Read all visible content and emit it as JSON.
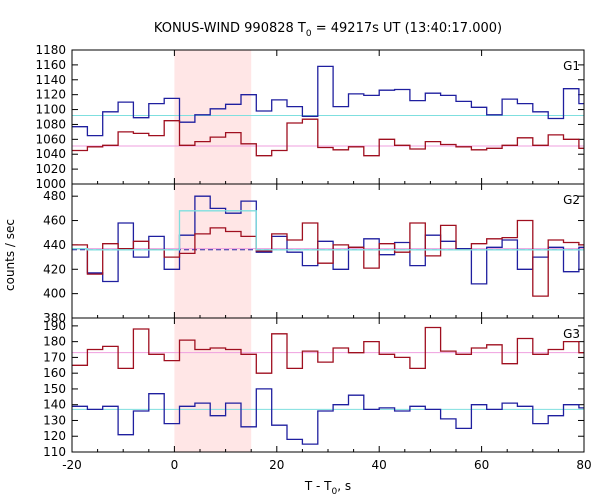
{
  "chart_data": {
    "type": "line",
    "title_main": "KONUS-WIND 990828 T",
    "title_sub": "0",
    "title_rest": " = 49217s UT (13:40:17.000)",
    "xlabel_main": "T - T",
    "xlabel_sub": "0",
    "xlabel_rest": ", s",
    "ylabel": "counts / sec",
    "xlim": [
      -20,
      80
    ],
    "xticks": [
      -20,
      0,
      20,
      40,
      60,
      80
    ],
    "highlight_interval": [
      0,
      15
    ],
    "colors": {
      "blue": "#1f1f9f",
      "red": "#9f0f1f",
      "cyan": "#7fdfdf",
      "pink": "#ef9fdf",
      "highlight": "#ffe6e6"
    },
    "panels": [
      {
        "name": "G1",
        "ylim": [
          1000,
          1180
        ],
        "yticks": [
          1000,
          1020,
          1040,
          1060,
          1080,
          1100,
          1120,
          1140,
          1160,
          1180
        ],
        "series": [
          {
            "color": "blue",
            "x": [
              -20,
              -17,
              -14,
              -11,
              -8,
              -5,
              -2,
              1,
              4,
              7,
              10,
              13,
              16,
              19,
              22,
              25,
              28,
              31,
              34,
              37,
              40,
              43,
              46,
              49,
              52,
              55,
              58,
              61,
              64,
              67,
              70,
              73,
              76,
              79
            ],
            "y": [
              1077,
              1065,
              1097,
              1110,
              1089,
              1108,
              1115,
              1083,
              1093,
              1101,
              1107,
              1120,
              1098,
              1113,
              1104,
              1091,
              1158,
              1104,
              1121,
              1119,
              1126,
              1127,
              1112,
              1122,
              1119,
              1111,
              1103,
              1093,
              1114,
              1108,
              1097,
              1088,
              1128,
              1108
            ]
          },
          {
            "color": "red",
            "x": [
              -20,
              -17,
              -14,
              -11,
              -8,
              -5,
              -2,
              1,
              4,
              7,
              10,
              13,
              16,
              19,
              22,
              25,
              28,
              31,
              34,
              37,
              40,
              43,
              46,
              49,
              52,
              55,
              58,
              61,
              64,
              67,
              70,
              73,
              76,
              79
            ],
            "y": [
              1045,
              1050,
              1052,
              1070,
              1068,
              1065,
              1085,
              1052,
              1057,
              1063,
              1069,
              1054,
              1038,
              1045,
              1082,
              1087,
              1049,
              1046,
              1050,
              1038,
              1060,
              1052,
              1047,
              1057,
              1053,
              1050,
              1046,
              1048,
              1052,
              1062,
              1052,
              1066,
              1060,
              1048
            ]
          }
        ],
        "baselines": [
          {
            "color": "cyan",
            "y": 1092,
            "dashed": false
          },
          {
            "color": "pink",
            "y": 1051,
            "dashed": false
          }
        ]
      },
      {
        "name": "G2",
        "ylim": [
          380,
          490
        ],
        "yticks": [
          380,
          400,
          420,
          440,
          460,
          480
        ],
        "series": [
          {
            "color": "blue",
            "x": [
              -20,
              -17,
              -14,
              -11,
              -8,
              -5,
              -2,
              1,
              4,
              7,
              10,
              13,
              16,
              19,
              22,
              25,
              28,
              31,
              34,
              37,
              40,
              43,
              46,
              49,
              52,
              55,
              58,
              61,
              64,
              67,
              70,
              73,
              76,
              79
            ],
            "y": [
              437,
              417,
              410,
              458,
              430,
              447,
              420,
              448,
              480,
              470,
              466,
              476,
              434,
              447,
              434,
              423,
              443,
              420,
              438,
              445,
              432,
              442,
              423,
              448,
              443,
              437,
              408,
              438,
              444,
              420,
              430,
              438,
              418,
              438
            ]
          },
          {
            "color": "red",
            "x": [
              -20,
              -17,
              -14,
              -11,
              -8,
              -5,
              -2,
              1,
              4,
              7,
              10,
              13,
              16,
              19,
              22,
              25,
              28,
              31,
              34,
              37,
              40,
              43,
              46,
              49,
              52,
              55,
              58,
              61,
              64,
              67,
              70,
              73,
              76,
              79
            ],
            "y": [
              440,
              416,
              441,
              437,
              443,
              436,
              430,
              433,
              449,
              454,
              451,
              447,
              435,
              449,
              444,
              458,
              425,
              440,
              438,
              421,
              441,
              434,
              458,
              431,
              456,
              436,
              441,
              445,
              446,
              460,
              398,
              444,
              442,
              440
            ]
          },
          {
            "color": "cyan",
            "x": [
              -20,
              -17,
              -14,
              -11,
              -8,
              -5,
              -2,
              1,
              4,
              7,
              10,
              13,
              16,
              19,
              22,
              25,
              28,
              31,
              34,
              37,
              40,
              43,
              46,
              49,
              52,
              55,
              58,
              61,
              64,
              67,
              70,
              73,
              76,
              79
            ],
            "y": [
              437,
              436,
              436,
              436,
              436,
              436,
              436,
              468,
              468,
              468,
              468,
              468,
              436,
              436,
              436,
              436,
              436,
              436,
              436,
              436,
              436,
              436,
              436,
              436,
              436,
              436,
              436,
              436,
              436,
              436,
              436,
              436,
              436,
              436
            ]
          }
        ],
        "baselines": [
          {
            "color": "blue",
            "y": 436,
            "dashed": true
          },
          {
            "color": "pink",
            "y": 437,
            "dashed": false
          }
        ]
      },
      {
        "name": "G3",
        "ylim": [
          110,
          195
        ],
        "yticks": [
          110,
          120,
          130,
          140,
          150,
          160,
          170,
          180,
          190
        ],
        "series": [
          {
            "color": "red",
            "x": [
              -20,
              -17,
              -14,
              -11,
              -8,
              -5,
              -2,
              1,
              4,
              7,
              10,
              13,
              16,
              19,
              22,
              25,
              28,
              31,
              34,
              37,
              40,
              43,
              46,
              49,
              52,
              55,
              58,
              61,
              64,
              67,
              70,
              73,
              76,
              79
            ],
            "y": [
              165,
              175,
              177,
              163,
              188,
              172,
              168,
              181,
              175,
              176,
              175,
              172,
              160,
              185,
              163,
              174,
              167,
              176,
              173,
              180,
              172,
              170,
              163,
              189,
              174,
              172,
              176,
              178,
              166,
              182,
              172,
              175,
              180,
              173
            ]
          },
          {
            "color": "blue",
            "x": [
              -20,
              -17,
              -14,
              -11,
              -8,
              -5,
              -2,
              1,
              4,
              7,
              10,
              13,
              16,
              19,
              22,
              25,
              28,
              31,
              34,
              37,
              40,
              43,
              46,
              49,
              52,
              55,
              58,
              61,
              64,
              67,
              70,
              73,
              76,
              79
            ],
            "y": [
              139,
              137,
              139,
              121,
              136,
              147,
              128,
              139,
              141,
              133,
              141,
              126,
              150,
              127,
              118,
              115,
              136,
              140,
              146,
              137,
              138,
              136,
              139,
              137,
              131,
              125,
              140,
              137,
              141,
              139,
              128,
              133,
              140,
              138
            ]
          }
        ],
        "baselines": [
          {
            "color": "cyan",
            "y": 137,
            "dashed": false
          },
          {
            "color": "pink",
            "y": 173,
            "dashed": false
          }
        ]
      }
    ]
  }
}
